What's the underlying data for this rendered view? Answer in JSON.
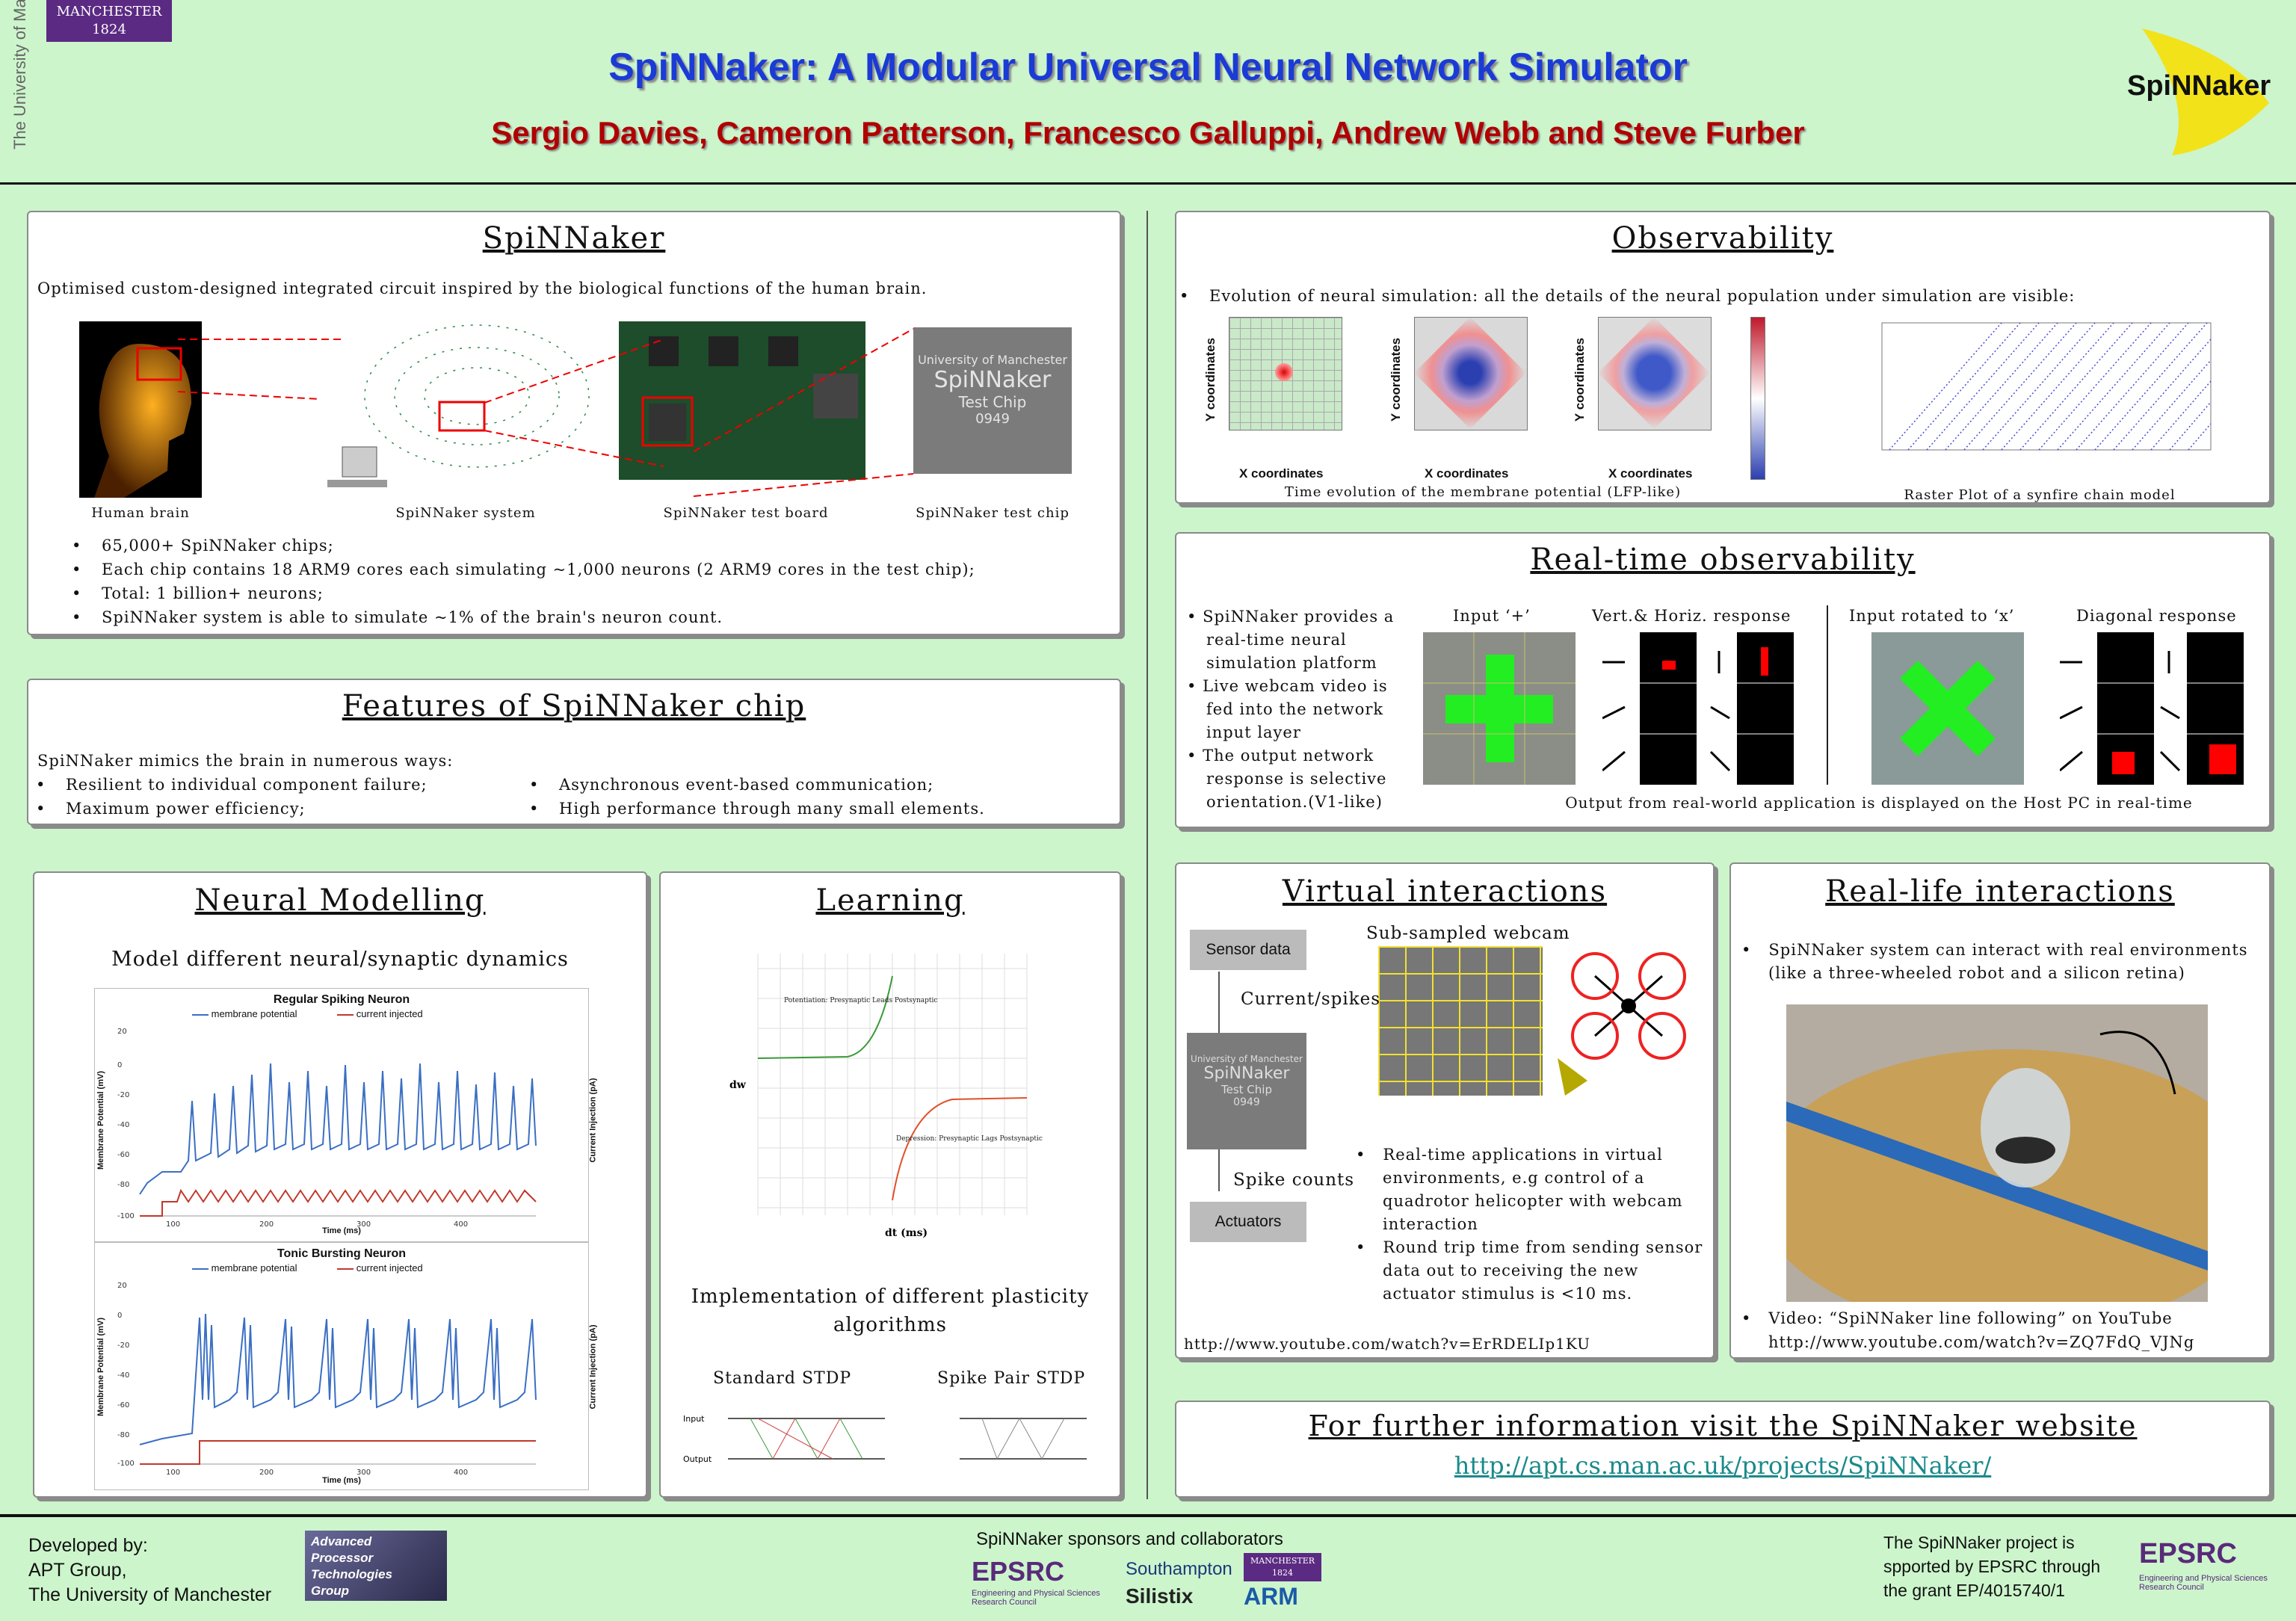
{
  "header": {
    "title": "SpiNNaker: A Modular Universal Neural Network Simulator",
    "authors": "Sergio Davies, Cameron Patterson, Francesco Galluppi, Andrew Webb and Steve Furber",
    "manchester_logo": "MANCHESTER 1824",
    "university_vertical": "The University of Manchester",
    "spinnaker_logo": "SpiNNaker"
  },
  "spinnaker": {
    "title": "SpiNNaker",
    "intro": "Optimised custom-designed integrated circuit inspired by the biological functions of the human brain.",
    "captions": [
      "Human brain",
      "SpiNNaker system",
      "SpiNNaker test board",
      "SpiNNaker test chip"
    ],
    "chip_text": [
      "University of Manchester",
      "SpiNNaker",
      "Test Chip",
      "0949"
    ],
    "bullets": [
      "65,000+ SpiNNaker chips;",
      "Each chip contains 18 ARM9 cores each simulating ~1,000 neurons (2 ARM9 cores in the test chip);",
      "Total: 1 billion+ neurons;",
      "SpiNNaker system is able to simulate ~1% of the brain's neuron count."
    ]
  },
  "features": {
    "title": "Features of SpiNNaker chip",
    "intro": "SpiNNaker mimics the brain in numerous ways:",
    "left": [
      "Resilient to individual component failure;",
      "Maximum power efficiency;"
    ],
    "right": [
      "Asynchronous event-based communication;",
      "High performance through many small elements."
    ]
  },
  "neural": {
    "title": "Neural Modelling",
    "subtitle": "Model different neural/synaptic dynamics",
    "chart1": {
      "title": "Regular Spiking Neuron",
      "legend": [
        "membrane potential",
        "current injected"
      ],
      "ylabel": "Membrane Potential (mV)",
      "y2label": "Current Injection (pA)",
      "xlabel": "Time (ms)"
    },
    "chart2": {
      "title": "Tonic Bursting Neuron",
      "legend": [
        "membrane potential",
        "current injected"
      ],
      "ylabel": "Membrane Potential (mV)",
      "y2label": "Current Injection (pA)",
      "xlabel": "Time (ms)"
    }
  },
  "learning": {
    "title": "Learning",
    "xlabel": "dt (ms)",
    "ylabel": "dw",
    "pot_label": "Potentiation: Presynaptic Leads Postsynaptic",
    "dep_label": "Depression: Presynaptic Lags Postsynaptic",
    "text": "Implementation of different plasticity algorithms",
    "stdp1": "Standard STDP",
    "stdp2": "Spike Pair STDP",
    "input": "Input",
    "output": "Output"
  },
  "observability": {
    "title": "Observability",
    "bullet": "Evolution of neural simulation: all the details of the neural population under simulation are visible:",
    "xlabel": "X coordinates",
    "ylabel": "Y coordinates",
    "caption1": "Time evolution of the membrane potential (LFP-like)",
    "caption2": "Raster Plot of a synfire chain model"
  },
  "realtime": {
    "title": "Real-time observability",
    "bullets": [
      "SpiNNaker provides a real-time neural simulation platform",
      "Live webcam video is fed into the network input layer",
      "The output network response is selective orientation.(V1-like)"
    ],
    "labels": [
      "Input ‘+’",
      "Vert.& Horiz. response",
      "Input rotated to ‘x’",
      "Diagonal response"
    ],
    "caption": "Output from real-world application is displayed on the Host PC in real-time"
  },
  "virtual": {
    "title": "Virtual interactions",
    "sensor": "Sensor data",
    "webcam": "Sub-sampled webcam",
    "current": "Current/spikes",
    "spike": "Spike counts",
    "actuators": "Actuators",
    "bullets": [
      "Real-time applications in virtual environments, e.g control of a quadrotor helicopter with webcam interaction",
      "Round trip time from sending sensor data out to receiving the new actuator stimulus is <10 ms."
    ],
    "url": "http://www.youtube.com/watch?v=ErRDELIp1KU"
  },
  "reallife": {
    "title": "Real-life interactions",
    "bullet1": "SpiNNaker system can interact with real environments (like a three-wheeled robot and a silicon retina)",
    "bullet2": "Video: “SpiNNaker line following” on YouTube",
    "url": "http://www.youtube.com/watch?v=ZQ7FdQ_VJNg"
  },
  "further": {
    "title": "For further information visit the SpiNNaker website",
    "url": "http://apt.cs.man.ac.uk/projects/SpiNNaker/"
  },
  "footer": {
    "developed": [
      "Developed by:",
      "APT Group,",
      "The University of Manchester"
    ],
    "apt_logo": [
      "Advanced",
      "Processor",
      "Technologies",
      "Group"
    ],
    "sponsors_title": "SpiNNaker sponsors and collaborators",
    "sponsor_names": [
      "EPSRC",
      "Southampton",
      "Silistix",
      "MANCHESTER 1824",
      "ARM"
    ],
    "epsrc_sub": "Engineering and Physical Sciences Research Council",
    "funding": [
      "The SpiNNaker project is",
      "spported by EPSRC through",
      "the grant EP/4015740/1"
    ],
    "epsrc_logo": "EPSRC"
  },
  "colors": {
    "background": "#ccf5cc",
    "title_blue": "#1a3bd6",
    "author_red": "#b00000",
    "series_blue": "#3a6fc4",
    "series_red": "#c0392b"
  }
}
